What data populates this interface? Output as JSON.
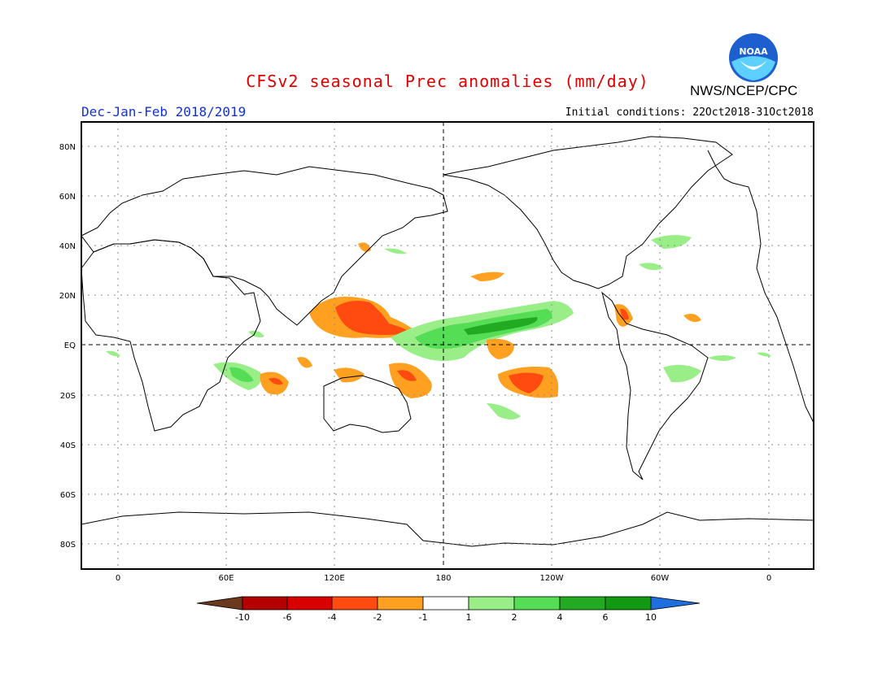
{
  "header": {
    "title": "CFSv2 seasonal Prec anomalies (mm/day)",
    "season": "Dec-Jan-Feb 2018/2019",
    "initial_conditions": "Initial conditions: 22Oct2018-31Oct2018",
    "agency": "NWS/NCEP/CPC",
    "logo_text": "NOAA"
  },
  "map": {
    "lat_labels": [
      "80N",
      "60N",
      "40N",
      "20N",
      "EQ",
      "20S",
      "40S",
      "60S",
      "80S"
    ],
    "lon_labels": [
      "0",
      "60E",
      "120E",
      "180",
      "120W",
      "60W",
      "0"
    ]
  },
  "colorbar": {
    "tick_labels": [
      "-10",
      "-6",
      "-4",
      "-2",
      "-1",
      "1",
      "2",
      "4",
      "6",
      "10"
    ],
    "colors": [
      "#6b3a1e",
      "#b40000",
      "#d80000",
      "#ff4a10",
      "#ffa020",
      "#ffffff",
      "#99ee88",
      "#55dd55",
      "#22aa22",
      "#119911",
      "#1e6ee0"
    ]
  },
  "colors": {
    "dry_strong": "#ff4a10",
    "dry": "#ffa020",
    "dry_deep": "#d80000",
    "wet_light": "#99ee88",
    "wet": "#55dd55",
    "wet_strong": "#22aa22"
  }
}
